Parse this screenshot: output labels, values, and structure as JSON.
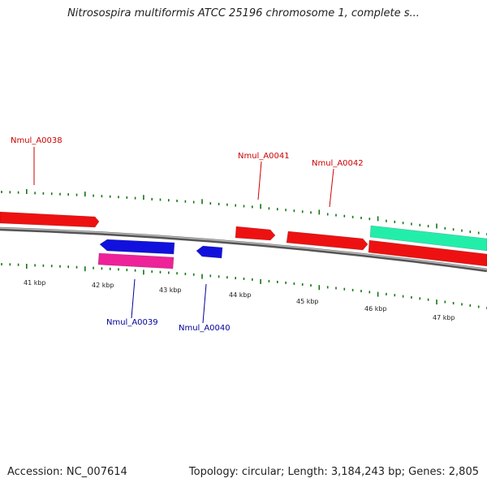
{
  "title": "Nitrosospira multiformis ATCC 25196 chromosome 1, complete s...",
  "footer": {
    "accession_label": "Accession:",
    "accession": "NC_007614",
    "summary": "Topology: circular; Length: 3,184,243 bp; Genes: 2,805"
  },
  "colors": {
    "forward_gene": "#ee1111",
    "reverse_gene": "#1111dd",
    "pink_gene": "#ee2299",
    "teal_gene": "#22eeaa",
    "tick": "#117711",
    "backbone": "#888888",
    "forward_label": "#cc0000",
    "reverse_label": "#000099"
  },
  "kbp_labels": [
    "41 kbp",
    "42 kbp",
    "43 kbp",
    "44 kbp",
    "45 kbp",
    "46 kbp",
    "47 kbp"
  ],
  "genes": [
    {
      "id": "gene-1",
      "label": "Nmul_A0038",
      "strand": "forward"
    },
    {
      "id": "gene-2",
      "label": "",
      "strand": "reverse"
    },
    {
      "id": "gene-3",
      "label": "Nmul_A0039",
      "strand": "reverse"
    },
    {
      "id": "gene-4",
      "label": "Nmul_A0040",
      "strand": "reverse"
    },
    {
      "id": "gene-5",
      "label": "Nmul_A0041",
      "strand": "forward"
    },
    {
      "id": "gene-6",
      "label": "Nmul_A0042",
      "strand": "forward"
    },
    {
      "id": "gene-7",
      "label": "",
      "strand": "forward"
    },
    {
      "id": "gene-8",
      "label": "",
      "strand": "forward"
    }
  ]
}
